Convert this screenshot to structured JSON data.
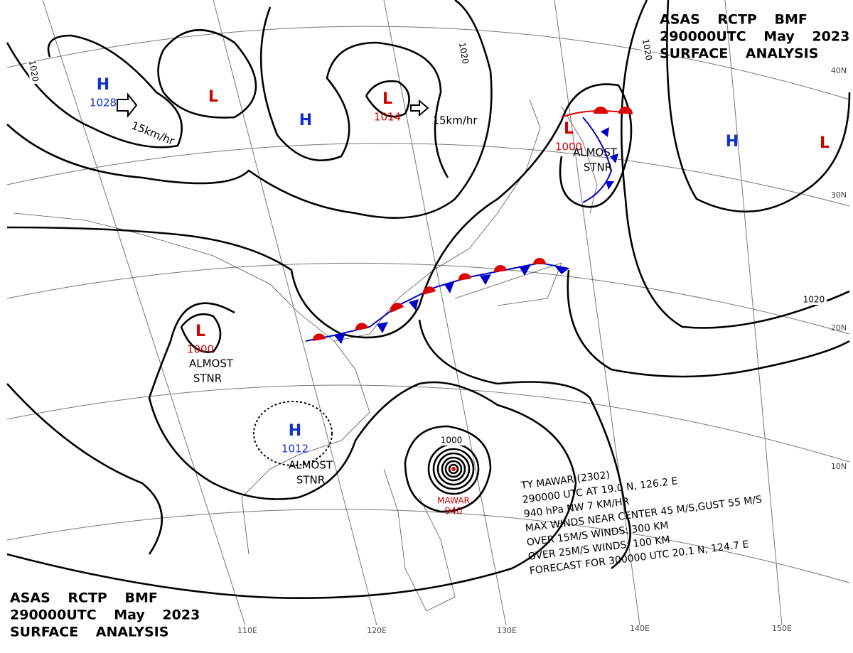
{
  "header_top": {
    "lines": [
      "ASAS RCTP BMF",
      "290000UTC May 2023",
      "SURFACE ANALYSIS"
    ]
  },
  "header_bottom": {
    "lines": [
      "ASAS RCTP BMF",
      "290000UTC May 2023",
      "SURFACE ANALYSIS"
    ]
  },
  "systems": [
    {
      "kind": "H",
      "pressure": "1028"
    },
    {
      "kind": "L"
    },
    {
      "kind": "H"
    },
    {
      "kind": "L",
      "pressure": "1014"
    },
    {
      "kind": "L",
      "pressure": "1000"
    },
    {
      "kind": "H"
    },
    {
      "kind": "L"
    },
    {
      "kind": "L",
      "pressure": "1000"
    },
    {
      "kind": "H",
      "pressure": "1012"
    }
  ],
  "motions": [
    "15km/hr",
    "15km/hr"
  ],
  "notes": [
    "ALMOST",
    "STNR",
    "ALMOST",
    "STNR",
    "ALMOST",
    "STNR"
  ],
  "isobar_labels": [
    "1020",
    "1020",
    "1020",
    "1020",
    "1000"
  ],
  "typhoon": {
    "name": "MAWAR",
    "pressure": "940",
    "lines": [
      "TY MAWAR (2302)",
      "290000 UTC AT 19.0 N, 126.2 E",
      "940 hPa NW 7 KM/HR",
      "MAX WINDS NEAR CENTER 45 M/S,GUST 55 M/S",
      "OVER 15M/S WINDS: 300 KM",
      "OVER 25M/S WINDS: 100 KM",
      "FORECAST FOR 300000 UTC 20.1 N, 124.7 E"
    ]
  },
  "longitudes": [
    "110E",
    "120E",
    "130E",
    "140E",
    "150E"
  ],
  "latitudes": [
    "40N",
    "30N",
    "20N",
    "10N"
  ]
}
